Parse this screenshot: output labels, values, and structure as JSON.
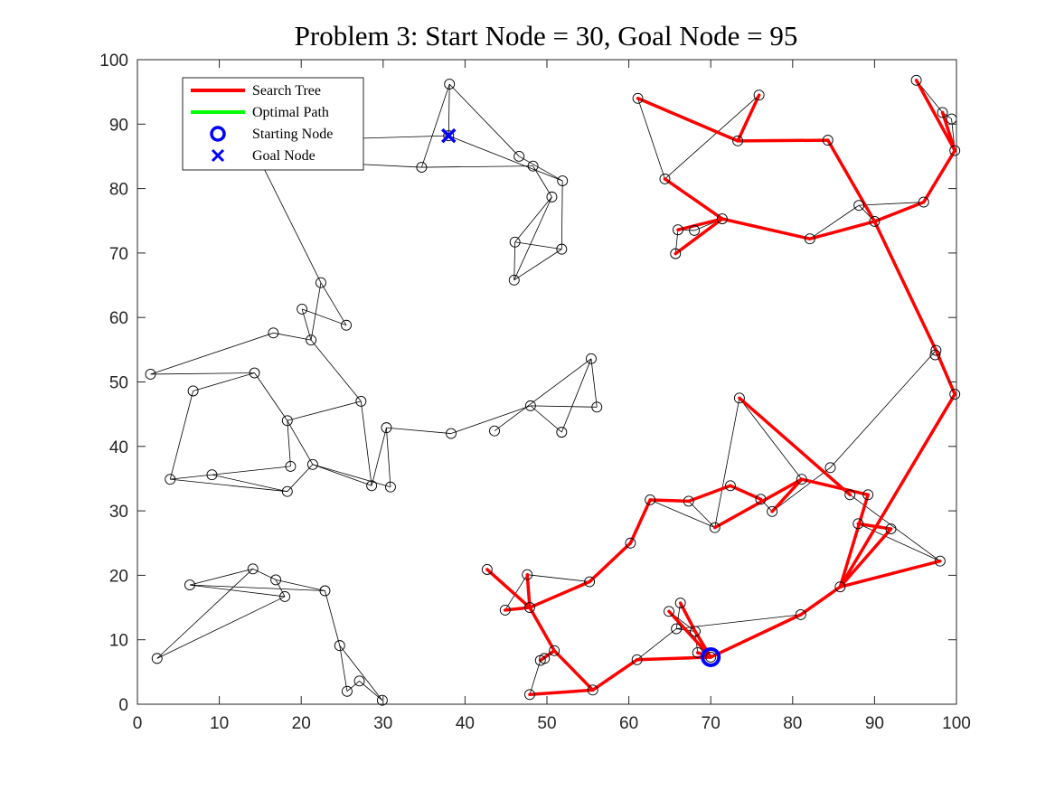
{
  "chart_data": {
    "type": "scatter",
    "title": "Problem 3: Start Node = 30, Goal Node = 95",
    "xlabel": "",
    "ylabel": "",
    "xlim": [
      0,
      100
    ],
    "ylim": [
      0,
      100
    ],
    "x_ticks": [
      "0",
      "10",
      "20",
      "30",
      "40",
      "50",
      "60",
      "70",
      "80",
      "90",
      "100"
    ],
    "y_ticks": [
      "0",
      "10",
      "20",
      "30",
      "40",
      "50",
      "60",
      "70",
      "80",
      "90",
      "100"
    ],
    "grid": false,
    "legend_position": "top-left",
    "legend": [
      {
        "label": "Search Tree",
        "color": "#ff0000",
        "marker": "line"
      },
      {
        "label": "Optimal Path",
        "color": "#00ff00",
        "marker": "line"
      },
      {
        "label": "Starting Node",
        "color": "#0000ff",
        "marker": "circle"
      },
      {
        "label": "Goal Node",
        "color": "#0000ff",
        "marker": "x"
      }
    ],
    "start_node": {
      "x": 70,
      "y": 7.3
    },
    "goal_node": {
      "x": 38,
      "y": 88.2
    },
    "nodes": [
      [
        38.1,
        96.2
      ],
      [
        34.7,
        83.3
      ],
      [
        46.6,
        85.0
      ],
      [
        48.3,
        83.5
      ],
      [
        51.9,
        81.2
      ],
      [
        50.6,
        78.7
      ],
      [
        46.1,
        71.7
      ],
      [
        51.8,
        70.6
      ],
      [
        46.0,
        65.8
      ],
      [
        38.0,
        88.2
      ],
      [
        22.4,
        65.4
      ],
      [
        20.1,
        61.3
      ],
      [
        21.2,
        56.5
      ],
      [
        25.5,
        58.8
      ],
      [
        16.6,
        57.6
      ],
      [
        1.6,
        51.2
      ],
      [
        14.3,
        51.4
      ],
      [
        6.8,
        48.6
      ],
      [
        18.3,
        44.0
      ],
      [
        27.3,
        47.0
      ],
      [
        4.0,
        34.9
      ],
      [
        9.1,
        35.6
      ],
      [
        18.7,
        36.9
      ],
      [
        21.4,
        37.2
      ],
      [
        18.3,
        33.0
      ],
      [
        28.6,
        33.9
      ],
      [
        30.9,
        33.7
      ],
      [
        30.4,
        42.9
      ],
      [
        38.3,
        42.0
      ],
      [
        43.6,
        42.4
      ],
      [
        48.0,
        46.3
      ],
      [
        51.8,
        42.2
      ],
      [
        55.4,
        53.6
      ],
      [
        56.1,
        46.1
      ],
      [
        14.1,
        21.0
      ],
      [
        16.9,
        19.3
      ],
      [
        6.4,
        18.5
      ],
      [
        18.0,
        16.7
      ],
      [
        22.9,
        17.6
      ],
      [
        2.4,
        7.1
      ],
      [
        24.7,
        9.1
      ],
      [
        27.1,
        3.6
      ],
      [
        25.6,
        2.0
      ],
      [
        29.9,
        0.6
      ],
      [
        61.1,
        94.0
      ],
      [
        75.9,
        94.5
      ],
      [
        73.3,
        87.4
      ],
      [
        84.3,
        87.5
      ],
      [
        64.4,
        81.5
      ],
      [
        66.0,
        73.6
      ],
      [
        68.0,
        73.5
      ],
      [
        71.4,
        75.3
      ],
      [
        65.7,
        69.9
      ],
      [
        82.1,
        72.2
      ],
      [
        88.1,
        77.4
      ],
      [
        90.0,
        74.9
      ],
      [
        96.0,
        77.9
      ],
      [
        95.1,
        96.8
      ],
      [
        98.3,
        91.8
      ],
      [
        99.4,
        90.8
      ],
      [
        99.8,
        85.9
      ],
      [
        97.5,
        54.9
      ],
      [
        97.4,
        54.2
      ],
      [
        99.8,
        48.1
      ],
      [
        73.5,
        47.5
      ],
      [
        84.6,
        36.7
      ],
      [
        81.1,
        34.9
      ],
      [
        87.0,
        32.5
      ],
      [
        89.2,
        32.5
      ],
      [
        76.1,
        31.8
      ],
      [
        77.5,
        29.9
      ],
      [
        72.4,
        33.9
      ],
      [
        67.3,
        31.5
      ],
      [
        62.6,
        31.7
      ],
      [
        70.5,
        27.4
      ],
      [
        88.0,
        28.0
      ],
      [
        92.0,
        27.2
      ],
      [
        98.0,
        22.2
      ],
      [
        85.8,
        18.2
      ],
      [
        60.2,
        25.0
      ],
      [
        55.2,
        19.0
      ],
      [
        47.6,
        20.1
      ],
      [
        42.7,
        20.9
      ],
      [
        44.9,
        14.6
      ],
      [
        47.9,
        15.0
      ],
      [
        64.9,
        14.4
      ],
      [
        66.3,
        15.7
      ],
      [
        65.8,
        11.7
      ],
      [
        68.1,
        11.3
      ],
      [
        68.4,
        8.0
      ],
      [
        81.0,
        13.9
      ],
      [
        50.9,
        8.3
      ],
      [
        49.2,
        6.8
      ],
      [
        49.7,
        7.1
      ],
      [
        47.9,
        1.5
      ],
      [
        55.6,
        2.2
      ],
      [
        61.0,
        6.9
      ],
      [
        70.0,
        7.3
      ]
    ],
    "graph_edges": [
      [
        34.7,
        83.3,
        38.1,
        96.2
      ],
      [
        38.1,
        96.2,
        46.6,
        85.0
      ],
      [
        38.1,
        96.2,
        38.0,
        88.2
      ],
      [
        34.7,
        83.3,
        48.3,
        83.5
      ],
      [
        38.0,
        88.2,
        51.9,
        81.2
      ],
      [
        46.6,
        85.0,
        51.9,
        81.2
      ],
      [
        48.3,
        83.5,
        50.6,
        78.7
      ],
      [
        50.6,
        78.7,
        46.1,
        71.7
      ],
      [
        50.6,
        78.7,
        46.0,
        65.8
      ],
      [
        51.9,
        81.2,
        51.8,
        70.6
      ],
      [
        46.1,
        71.7,
        51.8,
        70.6
      ],
      [
        51.8,
        70.6,
        46.0,
        65.8
      ],
      [
        46.1,
        71.7,
        46.0,
        65.8
      ],
      [
        13.8,
        87.3,
        38.0,
        88.2
      ],
      [
        13.8,
        84.6,
        34.7,
        83.3
      ],
      [
        14.2,
        86.3,
        22.4,
        65.4
      ],
      [
        22.4,
        65.4,
        21.2,
        56.5
      ],
      [
        22.4,
        65.4,
        25.5,
        58.8
      ],
      [
        20.1,
        61.3,
        21.2,
        56.5
      ],
      [
        20.1,
        61.3,
        25.5,
        58.8
      ],
      [
        16.6,
        57.6,
        21.2,
        56.5
      ],
      [
        1.6,
        51.2,
        16.6,
        57.6
      ],
      [
        1.6,
        51.2,
        14.3,
        51.4
      ],
      [
        6.8,
        48.6,
        14.3,
        51.4
      ],
      [
        14.3,
        51.4,
        18.3,
        44.0
      ],
      [
        21.2,
        56.5,
        27.3,
        47.0
      ],
      [
        18.3,
        44.0,
        27.3,
        47.0
      ],
      [
        6.8,
        48.6,
        4.0,
        34.9
      ],
      [
        18.3,
        44.0,
        18.7,
        36.9
      ],
      [
        18.3,
        44.0,
        21.4,
        37.2
      ],
      [
        4.0,
        34.9,
        18.3,
        33.0
      ],
      [
        4.0,
        34.9,
        18.7,
        36.9
      ],
      [
        9.1,
        35.6,
        18.3,
        33.0
      ],
      [
        18.3,
        33.0,
        21.4,
        37.2
      ],
      [
        21.4,
        37.2,
        30.9,
        33.7
      ],
      [
        21.4,
        37.2,
        28.6,
        33.9
      ],
      [
        27.3,
        47.0,
        28.6,
        33.9
      ],
      [
        30.4,
        42.9,
        28.6,
        33.9
      ],
      [
        30.4,
        42.9,
        30.9,
        33.7
      ],
      [
        30.4,
        42.9,
        38.3,
        42.0
      ],
      [
        38.3,
        42.0,
        48.0,
        46.3
      ],
      [
        43.6,
        42.4,
        55.4,
        53.6
      ],
      [
        48.0,
        46.3,
        56.1,
        46.1
      ],
      [
        48.0,
        46.3,
        51.8,
        42.2
      ],
      [
        55.4,
        53.6,
        51.8,
        42.2
      ],
      [
        55.4,
        53.6,
        56.1,
        46.1
      ],
      [
        14.1,
        21.0,
        6.4,
        18.5
      ],
      [
        14.1,
        21.0,
        16.9,
        19.3
      ],
      [
        14.1,
        21.0,
        2.4,
        7.1
      ],
      [
        6.4,
        18.5,
        18.0,
        16.7
      ],
      [
        6.4,
        18.5,
        22.9,
        17.6
      ],
      [
        16.9,
        19.3,
        18.0,
        16.7
      ],
      [
        16.9,
        19.3,
        22.9,
        17.6
      ],
      [
        2.4,
        7.1,
        18.0,
        16.7
      ],
      [
        22.9,
        17.6,
        24.7,
        9.1
      ],
      [
        24.7,
        9.1,
        25.6,
        2.0
      ],
      [
        24.7,
        9.1,
        29.9,
        0.6
      ],
      [
        27.1,
        3.6,
        25.6,
        2.0
      ],
      [
        27.1,
        3.6,
        29.9,
        0.6
      ],
      [
        61.1,
        94.0,
        64.4,
        81.5
      ],
      [
        75.9,
        94.5,
        73.3,
        87.4
      ],
      [
        64.4,
        81.5,
        75.9,
        94.5
      ],
      [
        66.0,
        73.6,
        68.0,
        73.5
      ],
      [
        68.0,
        73.5,
        71.4,
        75.3
      ],
      [
        65.7,
        69.9,
        66.0,
        73.6
      ],
      [
        82.1,
        72.2,
        88.1,
        77.4
      ],
      [
        88.1,
        77.4,
        96.0,
        77.9
      ],
      [
        90.0,
        74.9,
        88.1,
        77.4
      ],
      [
        95.1,
        96.8,
        98.3,
        91.8
      ],
      [
        98.3,
        91.8,
        99.4,
        90.8
      ],
      [
        99.4,
        90.8,
        99.8,
        85.9
      ],
      [
        97.5,
        54.9,
        84.6,
        36.7
      ],
      [
        73.5,
        47.5,
        81.1,
        34.9
      ],
      [
        73.5,
        47.5,
        70.5,
        27.4
      ],
      [
        84.6,
        36.7,
        77.5,
        29.9
      ],
      [
        87.0,
        32.5,
        98.0,
        22.2
      ],
      [
        89.2,
        32.5,
        85.8,
        18.2
      ],
      [
        88.0,
        28.0,
        98.0,
        22.2
      ],
      [
        62.6,
        31.7,
        70.5,
        27.4
      ],
      [
        62.6,
        31.7,
        60.2,
        25.0
      ],
      [
        67.3,
        31.5,
        70.5,
        27.4
      ],
      [
        76.1,
        31.8,
        77.5,
        29.9
      ],
      [
        55.2,
        19.0,
        47.6,
        20.1
      ],
      [
        42.7,
        20.9,
        47.9,
        15.0
      ],
      [
        47.6,
        20.1,
        44.9,
        14.6
      ],
      [
        64.9,
        14.4,
        68.1,
        11.3
      ],
      [
        66.3,
        15.7,
        65.8,
        11.7
      ],
      [
        65.8,
        11.7,
        68.1,
        11.3
      ],
      [
        65.8,
        11.7,
        81.0,
        13.9
      ],
      [
        61.0,
        6.9,
        65.8,
        11.7
      ],
      [
        68.4,
        8.0,
        68.1,
        11.3
      ],
      [
        49.2,
        6.8,
        50.9,
        8.3
      ],
      [
        49.2,
        6.8,
        47.9,
        1.5
      ],
      [
        49.7,
        7.1,
        50.9,
        8.3
      ]
    ],
    "tree_edges": [
      [
        61.1,
        94.0,
        73.3,
        87.4
      ],
      [
        73.3,
        87.4,
        84.3,
        87.5
      ],
      [
        75.9,
        94.5,
        73.3,
        87.4
      ],
      [
        84.3,
        87.5,
        90.0,
        74.9
      ],
      [
        64.4,
        81.5,
        71.4,
        75.3
      ],
      [
        71.4,
        75.3,
        82.1,
        72.2
      ],
      [
        82.1,
        72.2,
        90.0,
        74.9
      ],
      [
        66.0,
        73.6,
        71.4,
        75.3
      ],
      [
        65.7,
        69.9,
        71.4,
        75.3
      ],
      [
        90.0,
        74.9,
        96.0,
        77.9
      ],
      [
        96.0,
        77.9,
        99.8,
        85.9
      ],
      [
        95.1,
        96.8,
        99.8,
        85.9
      ],
      [
        98.3,
        91.8,
        99.8,
        85.9
      ],
      [
        90.0,
        74.9,
        97.5,
        54.9
      ],
      [
        97.5,
        54.9,
        99.8,
        48.1
      ],
      [
        99.8,
        48.1,
        85.8,
        18.2
      ],
      [
        73.5,
        47.5,
        87.0,
        32.5
      ],
      [
        81.1,
        34.9,
        89.2,
        32.5
      ],
      [
        81.1,
        34.9,
        77.5,
        29.9
      ],
      [
        81.1,
        34.9,
        70.5,
        27.4
      ],
      [
        89.2,
        32.5,
        85.8,
        18.2
      ],
      [
        88.0,
        28.0,
        92.0,
        27.2
      ],
      [
        92.0,
        27.2,
        85.8,
        18.2
      ],
      [
        98.0,
        22.2,
        85.8,
        18.2
      ],
      [
        85.8,
        18.2,
        81.0,
        13.9
      ],
      [
        81.0,
        13.9,
        70.0,
        7.3
      ],
      [
        72.4,
        33.9,
        76.1,
        31.8
      ],
      [
        72.4,
        33.9,
        67.3,
        31.5
      ],
      [
        67.3,
        31.5,
        62.6,
        31.7
      ],
      [
        62.6,
        31.7,
        60.2,
        25.0
      ],
      [
        60.2,
        25.0,
        55.2,
        19.0
      ],
      [
        55.2,
        19.0,
        47.9,
        15.0
      ],
      [
        47.9,
        15.0,
        44.9,
        14.6
      ],
      [
        47.9,
        15.0,
        47.6,
        20.1
      ],
      [
        47.9,
        15.0,
        42.7,
        20.9
      ],
      [
        47.9,
        15.0,
        50.9,
        8.3
      ],
      [
        50.9,
        8.3,
        55.6,
        2.2
      ],
      [
        55.6,
        2.2,
        47.9,
        1.5
      ],
      [
        50.9,
        8.3,
        49.2,
        6.8
      ],
      [
        55.6,
        2.2,
        61.0,
        6.9
      ],
      [
        61.0,
        6.9,
        70.0,
        7.3
      ],
      [
        64.9,
        14.4,
        70.0,
        7.3
      ],
      [
        66.3,
        15.7,
        68.1,
        11.3
      ],
      [
        68.1,
        11.3,
        70.0,
        7.3
      ],
      [
        70.0,
        7.3,
        68.4,
        8.0
      ]
    ]
  }
}
